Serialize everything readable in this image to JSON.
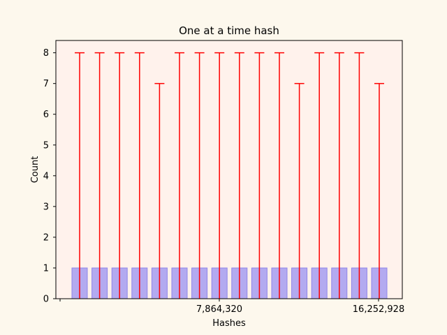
{
  "chart_data": {
    "type": "bar",
    "title": "One at a time hash",
    "xlabel": "Hashes",
    "ylabel": "Count",
    "ylim": [
      0,
      8.4
    ],
    "yticks": [
      0,
      1,
      2,
      3,
      4,
      5,
      6,
      7,
      8
    ],
    "xtick_labels": [
      "",
      "7,864,320",
      "16,252,928"
    ],
    "values": [
      1,
      1,
      1,
      1,
      1,
      1,
      1,
      1,
      1,
      1,
      1,
      1,
      1,
      1,
      1,
      1
    ],
    "error_upper": [
      8,
      8,
      8,
      8,
      7,
      8,
      8,
      8,
      8,
      8,
      8,
      7,
      8,
      8,
      8,
      7
    ],
    "colors": {
      "figure_bg": "#fdf8ed",
      "plot_bg": "#fff2ec",
      "bar_fill": "#b3aaf0",
      "bar_edge": "#8f85e8",
      "error_bar": "#ff0000"
    },
    "grid": false,
    "legend": "none"
  }
}
